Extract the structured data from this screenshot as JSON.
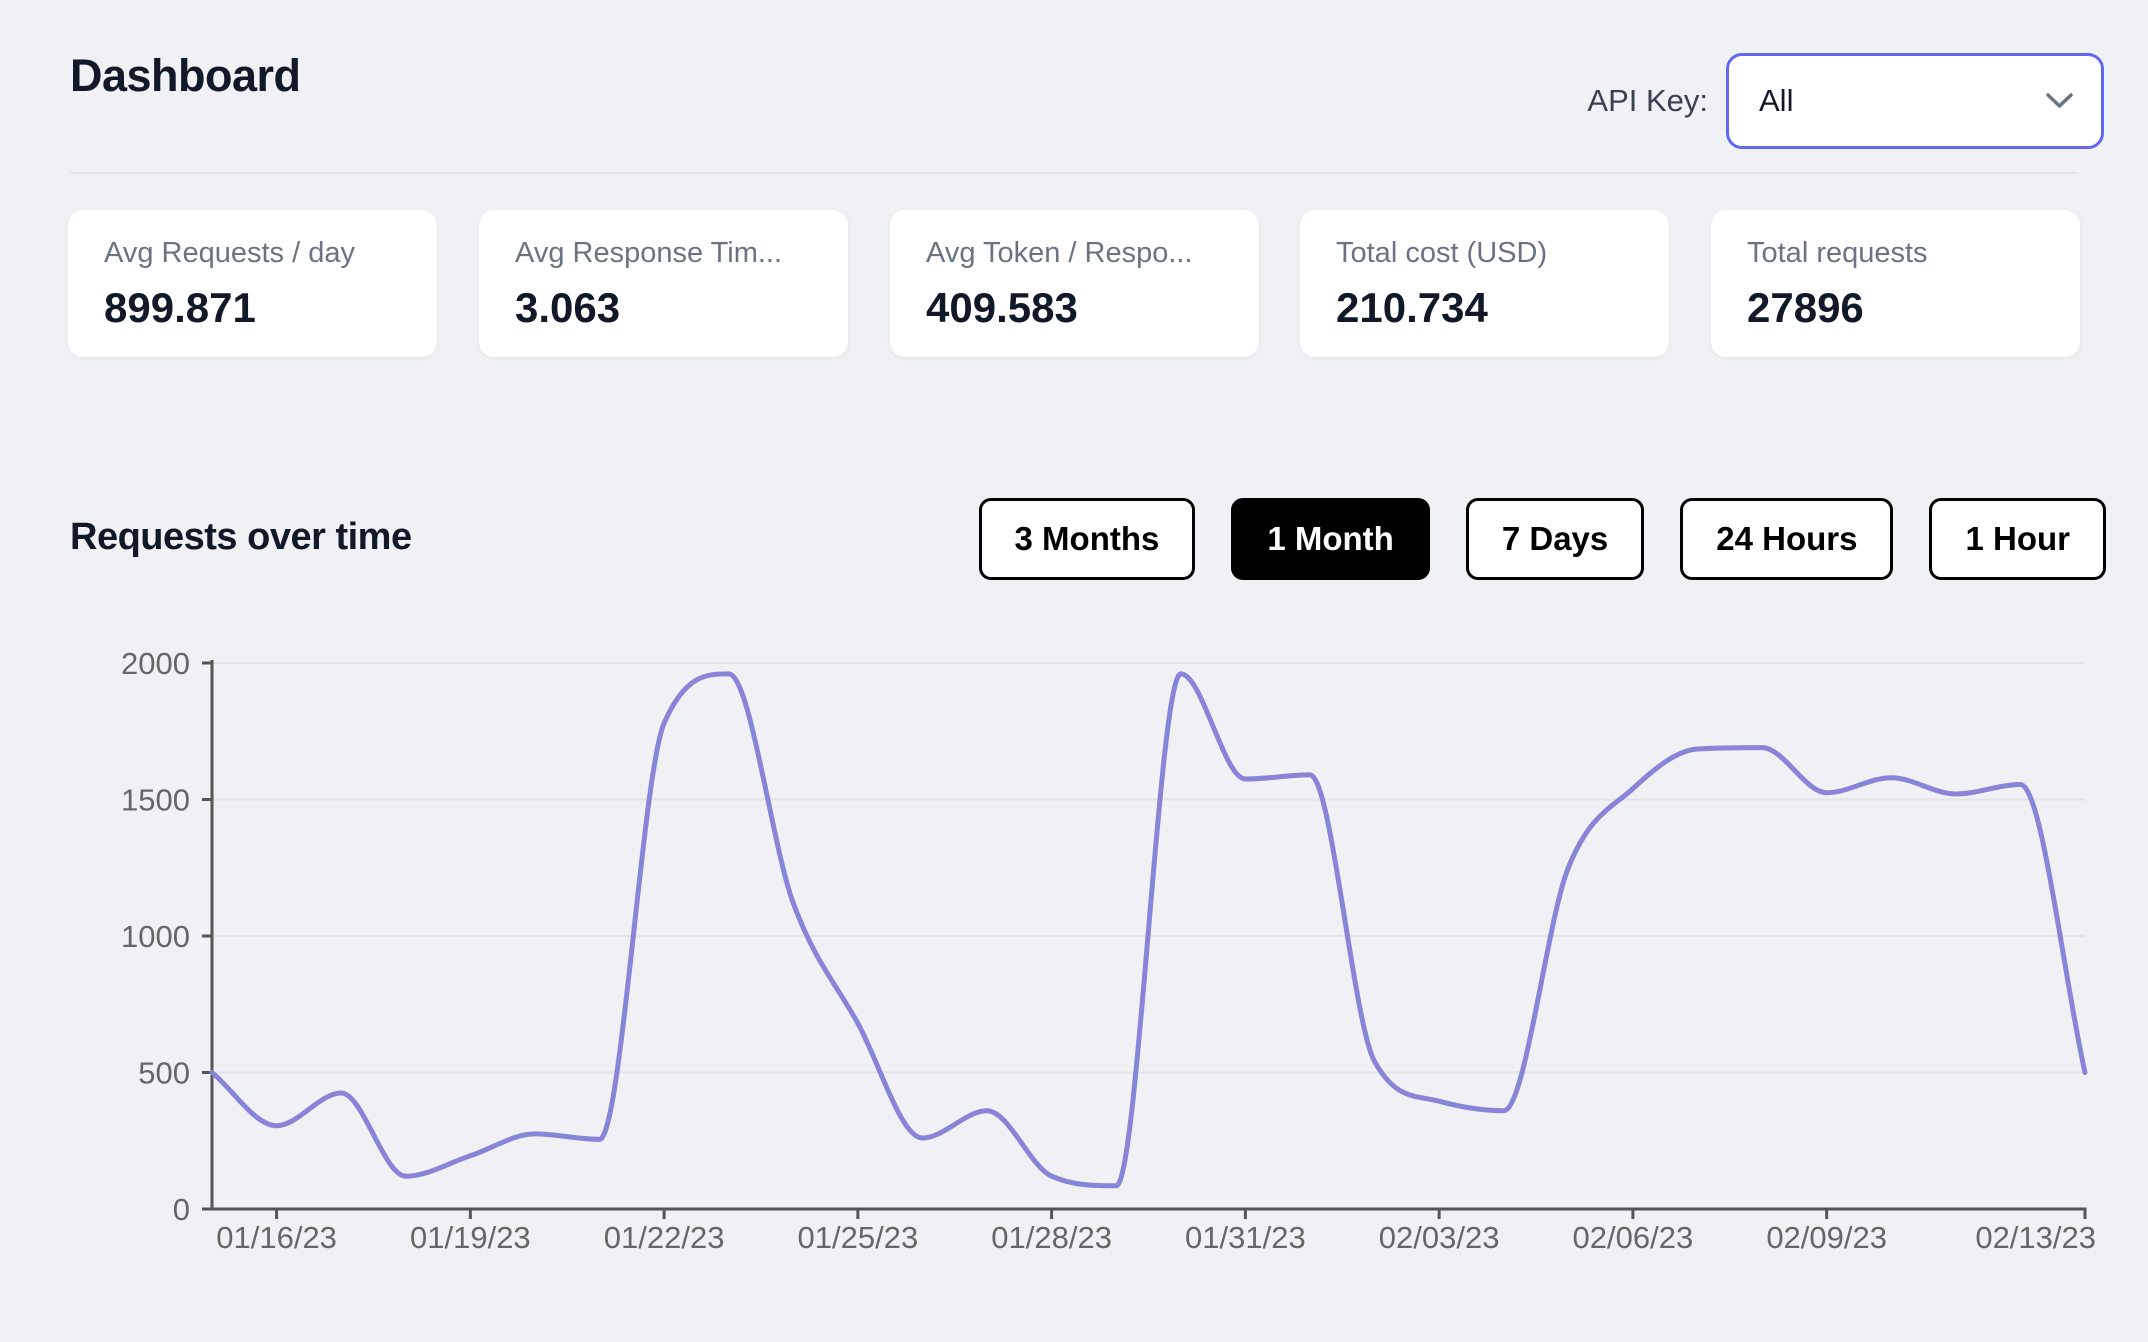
{
  "header": {
    "title": "Dashboard",
    "api_key_label": "API Key:",
    "api_key_value": "All",
    "dropdown_border_color": "#6366f1"
  },
  "stats": [
    {
      "label": "Avg Requests / day",
      "value": "899.871"
    },
    {
      "label": "Avg Response Tim...",
      "value": "3.063"
    },
    {
      "label": "Avg Token / Respo...",
      "value": "409.583"
    },
    {
      "label": "Total cost (USD)",
      "value": "210.734"
    },
    {
      "label": "Total requests",
      "value": "27896"
    }
  ],
  "section": {
    "title": "Requests over time",
    "range_buttons": [
      {
        "label": "3 Months",
        "active": false
      },
      {
        "label": "1 Month",
        "active": true
      },
      {
        "label": "7 Days",
        "active": false
      },
      {
        "label": "24 Hours",
        "active": false
      },
      {
        "label": "1 Hour",
        "active": false
      }
    ]
  },
  "chart_data": {
    "type": "line",
    "title": "Requests over time",
    "xlabel": "",
    "ylabel": "",
    "x": [
      "01/15/23",
      "01/16/23",
      "01/17/23",
      "01/18/23",
      "01/19/23",
      "01/20/23",
      "01/21/23",
      "01/22/23",
      "01/23/23",
      "01/24/23",
      "01/25/23",
      "01/26/23",
      "01/27/23",
      "01/28/23",
      "01/29/23",
      "01/30/23",
      "01/31/23",
      "02/01/23",
      "02/02/23",
      "02/03/23",
      "02/04/23",
      "02/05/23",
      "02/06/23",
      "02/07/23",
      "02/08/23",
      "02/09/23",
      "02/10/23",
      "02/11/23",
      "02/12/23",
      "02/13/23"
    ],
    "values": [
      500,
      305,
      425,
      120,
      195,
      275,
      255,
      1780,
      1960,
      1120,
      680,
      260,
      360,
      120,
      85,
      1960,
      1575,
      1590,
      540,
      395,
      360,
      1250,
      1540,
      1685,
      1690,
      1525,
      1580,
      1520,
      1555,
      500
    ],
    "x_tick_indices": [
      1,
      4,
      7,
      10,
      13,
      16,
      19,
      22,
      25,
      29
    ],
    "x_tick_labels": [
      "01/16/23",
      "01/19/23",
      "01/22/23",
      "01/25/23",
      "01/28/23",
      "01/31/23",
      "02/03/23",
      "02/06/23",
      "02/09/23",
      "02/13/23"
    ],
    "y_ticks": [
      0,
      500,
      1000,
      1500,
      2000
    ],
    "ylim": [
      0,
      2000
    ],
    "grid": "horizontal",
    "legend_position": "none",
    "line_color": "#8884d8",
    "axis_color": "#555555",
    "tick_text_color": "#666666",
    "grid_color": "#e2e4e9"
  }
}
